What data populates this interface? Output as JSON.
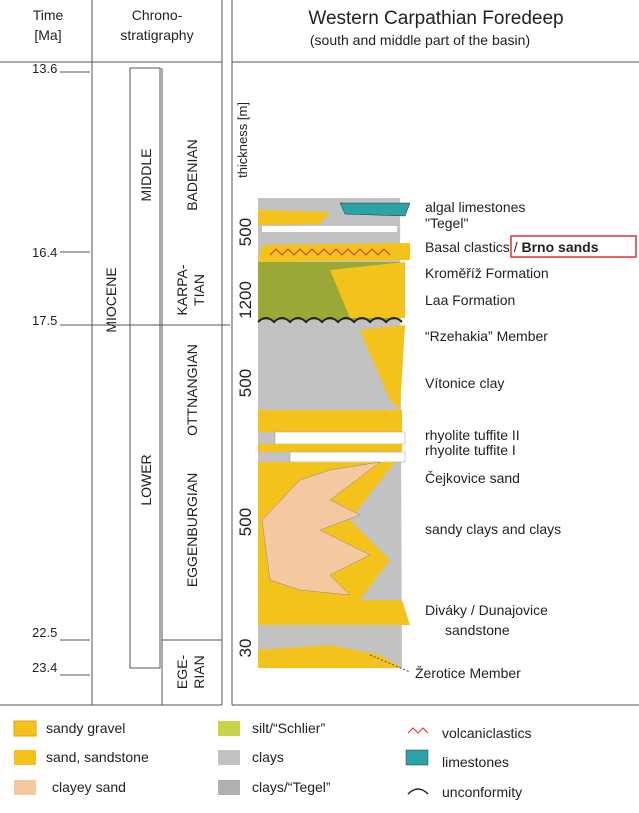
{
  "header": {
    "time": [
      "Time",
      "[Ma]"
    ],
    "chronostratigraphy": [
      "Chrono-",
      "stratigraphy"
    ],
    "title": "Western Carpathian Foredeep",
    "subtitle": "(south and middle part of the basin)"
  },
  "time_labels": [
    "13.6",
    "16.4",
    "17.5",
    "22.5",
    "23.4"
  ],
  "chrono": {
    "epoch": "MIOCENE",
    "subepochs": [
      "MIDDLE",
      "LOWER"
    ],
    "stages": {
      "badenian": "BADENIAN",
      "karpatian": [
        "KARPA-",
        "TIAN"
      ],
      "ottnangian": "OTTNANGIAN",
      "eggenburgian": "EGGENBURGIAN",
      "egerian": [
        "EGE-",
        "RIAN"
      ]
    }
  },
  "column": {
    "thickness_label": "thickness [m]",
    "thickness_values": [
      "500",
      "1200",
      "500",
      "500",
      "30"
    ]
  },
  "units": {
    "algal": "algal limestones",
    "tegel": "\"Tegel\"",
    "basal": "Basal clastics / ",
    "brno": "Brno sands",
    "kromeriz": "Kroměříž Formation",
    "laa": "Laa Formation",
    "rzehakia": "“Rzehakia” Member",
    "vitonice": "Vítonice clay",
    "rhyolite2": "rhyolite tuffite II",
    "rhyolite1": "rhyolite tuffite I",
    "cejkovice": "Čejkovice sand",
    "sandy_clays": "sandy clays and clays",
    "divaky": [
      "Diváky / Dunajovice",
      "sandstone"
    ],
    "zerotice": "Žerotice Member"
  },
  "legend": [
    "sandy gravel",
    "sand, sandstone",
    "clayey sand",
    "silt/“Schlier”",
    "clays",
    "clays/“Tegel”",
    "volcaniclastics",
    "limestones",
    "unconformity"
  ]
}
